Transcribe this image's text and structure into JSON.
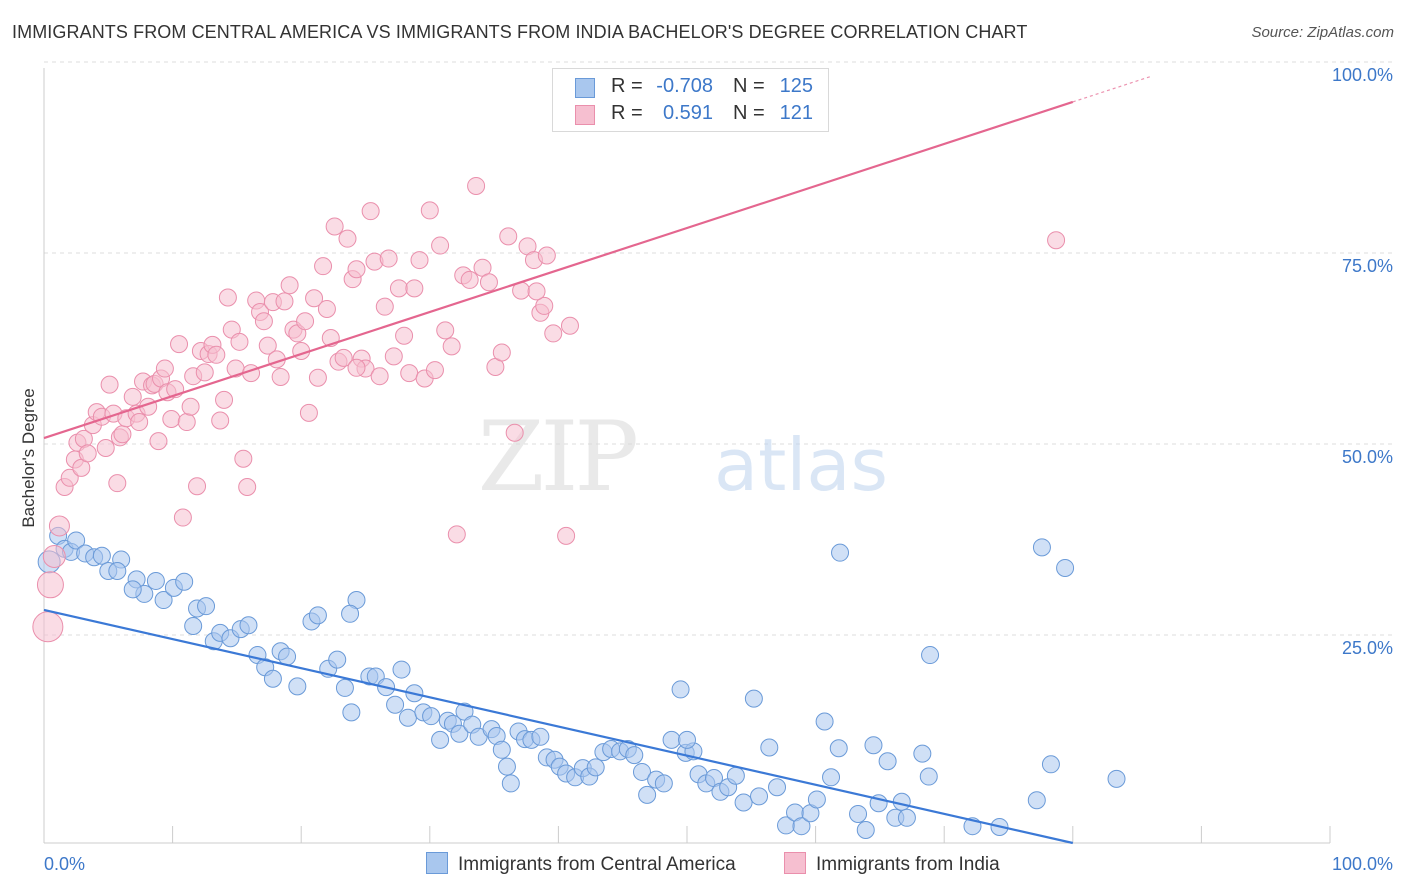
{
  "title": "IMMIGRANTS FROM CENTRAL AMERICA VS IMMIGRANTS FROM INDIA BACHELOR'S DEGREE CORRELATION CHART",
  "source": "Source: ZipAtlas.com",
  "watermark": {
    "zip": "ZIP",
    "atlas": "atlas"
  },
  "colors": {
    "blue_fill": "#a9c7ee",
    "blue_stroke": "#6a9ad8",
    "blue_line": "#3b79d6",
    "pink_fill": "#f6bfd0",
    "pink_stroke": "#ea8fac",
    "pink_line": "#e4668f",
    "axis_label": "#3d78c9",
    "grid": "#dddddd"
  },
  "legend_top": {
    "rows": [
      {
        "series": "Immigrants from Central America",
        "r_label": "R =",
        "r_value": "-0.708",
        "n_label": "N =",
        "n_value": "125"
      },
      {
        "series": "Immigrants from India",
        "r_label": "R =",
        "r_value": "0.591",
        "n_label": "N =",
        "n_value": "121"
      }
    ]
  },
  "legend_bottom": [
    "Immigrants from Central America",
    "Immigrants from India"
  ],
  "chart_data": {
    "type": "scatter",
    "title": "IMMIGRANTS FROM CENTRAL AMERICA VS IMMIGRANTS FROM INDIA BACHELOR'S DEGREE CORRELATION CHART",
    "xlabel": "",
    "ylabel": "Bachelor's Degree",
    "xlim": [
      0,
      100
    ],
    "ylim": [
      0,
      100
    ],
    "x_tick_labels": [
      {
        "value": 0,
        "label": "0.0%"
      },
      {
        "value": 100,
        "label": "100.0%"
      }
    ],
    "y_tick_labels": [
      {
        "value": 25,
        "label": "25.0%"
      },
      {
        "value": 50,
        "label": "50.0%"
      },
      {
        "value": 75,
        "label": "75.0%"
      },
      {
        "value": 100,
        "label": "100.0%"
      }
    ],
    "grid": true,
    "series": [
      {
        "name": "Immigrants from Central America",
        "color": "blue",
        "R": -0.708,
        "N": 125,
        "trend": {
          "x0": 0,
          "y0": 30.5,
          "x1": 80,
          "y1": 0,
          "dashed_to": 80
        },
        "points": [
          [
            0.4,
            36.8
          ],
          [
            1.1,
            40.2
          ],
          [
            1.6,
            38.5
          ],
          [
            2.1,
            38.1
          ],
          [
            2.5,
            39.6
          ],
          [
            3.2,
            37.9
          ],
          [
            3.9,
            37.4
          ],
          [
            4.5,
            37.6
          ],
          [
            5.0,
            35.6
          ],
          [
            6.0,
            37.1
          ],
          [
            5.7,
            35.6
          ],
          [
            7.2,
            34.5
          ],
          [
            7.8,
            32.6
          ],
          [
            6.9,
            33.2
          ],
          [
            8.7,
            34.3
          ],
          [
            9.3,
            31.8
          ],
          [
            10.1,
            33.4
          ],
          [
            10.9,
            34.2
          ],
          [
            11.6,
            28.4
          ],
          [
            11.9,
            30.7
          ],
          [
            12.6,
            31.0
          ],
          [
            13.2,
            26.4
          ],
          [
            13.7,
            27.5
          ],
          [
            14.5,
            26.8
          ],
          [
            15.3,
            28.0
          ],
          [
            15.9,
            28.5
          ],
          [
            16.6,
            24.6
          ],
          [
            17.2,
            23.0
          ],
          [
            17.8,
            21.5
          ],
          [
            18.4,
            25.1
          ],
          [
            18.9,
            24.4
          ],
          [
            19.7,
            20.5
          ],
          [
            20.8,
            29.0
          ],
          [
            21.3,
            29.8
          ],
          [
            22.1,
            22.8
          ],
          [
            22.8,
            24.0
          ],
          [
            23.4,
            20.3
          ],
          [
            23.9,
            17.1
          ],
          [
            24.3,
            31.8
          ],
          [
            25.3,
            21.8
          ],
          [
            25.8,
            21.8
          ],
          [
            26.6,
            20.4
          ],
          [
            27.3,
            18.1
          ],
          [
            27.8,
            22.7
          ],
          [
            28.3,
            16.4
          ],
          [
            28.8,
            19.6
          ],
          [
            29.5,
            17.1
          ],
          [
            30.1,
            16.6
          ],
          [
            30.8,
            13.5
          ],
          [
            31.4,
            16.0
          ],
          [
            31.8,
            15.6
          ],
          [
            32.3,
            14.3
          ],
          [
            32.7,
            17.2
          ],
          [
            33.3,
            15.5
          ],
          [
            33.8,
            13.9
          ],
          [
            34.8,
            14.9
          ],
          [
            35.2,
            14.0
          ],
          [
            35.6,
            12.2
          ],
          [
            36.0,
            10.0
          ],
          [
            36.3,
            7.8
          ],
          [
            36.9,
            14.6
          ],
          [
            37.4,
            13.6
          ],
          [
            37.9,
            13.5
          ],
          [
            38.6,
            13.9
          ],
          [
            39.1,
            11.2
          ],
          [
            39.7,
            10.9
          ],
          [
            40.1,
            10.0
          ],
          [
            40.6,
            9.1
          ],
          [
            41.3,
            8.6
          ],
          [
            41.9,
            9.8
          ],
          [
            42.4,
            8.7
          ],
          [
            42.9,
            9.9
          ],
          [
            43.5,
            11.9
          ],
          [
            44.1,
            12.3
          ],
          [
            44.8,
            12.0
          ],
          [
            45.4,
            12.3
          ],
          [
            45.9,
            11.5
          ],
          [
            46.5,
            9.3
          ],
          [
            46.9,
            6.3
          ],
          [
            47.6,
            8.3
          ],
          [
            48.2,
            7.8
          ],
          [
            48.8,
            13.5
          ],
          [
            49.5,
            20.1
          ],
          [
            49.9,
            11.8
          ],
          [
            50.5,
            12.0
          ],
          [
            50.9,
            9.0
          ],
          [
            51.5,
            7.8
          ],
          [
            52.1,
            8.5
          ],
          [
            52.6,
            6.7
          ],
          [
            53.2,
            7.3
          ],
          [
            53.8,
            8.8
          ],
          [
            54.4,
            5.3
          ],
          [
            55.2,
            18.9
          ],
          [
            55.6,
            6.1
          ],
          [
            56.4,
            12.5
          ],
          [
            57.0,
            7.3
          ],
          [
            57.7,
            2.3
          ],
          [
            58.4,
            4.0
          ],
          [
            58.9,
            2.2
          ],
          [
            59.6,
            3.9
          ],
          [
            60.1,
            5.7
          ],
          [
            60.7,
            15.9
          ],
          [
            61.2,
            8.6
          ],
          [
            61.8,
            12.4
          ],
          [
            63.3,
            3.8
          ],
          [
            63.9,
            1.7
          ],
          [
            64.5,
            12.8
          ],
          [
            64.9,
            5.2
          ],
          [
            65.6,
            10.7
          ],
          [
            66.2,
            3.3
          ],
          [
            66.7,
            5.4
          ],
          [
            67.1,
            3.3
          ],
          [
            68.3,
            11.7
          ],
          [
            68.8,
            8.7
          ],
          [
            68.9,
            24.6
          ],
          [
            72.2,
            2.2
          ],
          [
            74.3,
            2.1
          ],
          [
            77.6,
            38.7
          ],
          [
            79.4,
            36.0
          ],
          [
            77.2,
            5.6
          ],
          [
            78.3,
            10.3
          ],
          [
            83.4,
            8.4
          ],
          [
            61.9,
            38.0
          ],
          [
            50.0,
            13.5
          ],
          [
            23.8,
            30.0
          ]
        ]
      },
      {
        "name": "Immigrants from India",
        "color": "pink",
        "R": 0.591,
        "N": 121,
        "trend": {
          "x0": 0,
          "y0": 53.0,
          "x1": 80,
          "y1": 97.0,
          "dashed_to": 86
        },
        "points": [
          [
            0.3,
            28.3
          ],
          [
            0.5,
            33.8
          ],
          [
            0.8,
            37.5
          ],
          [
            1.2,
            41.5
          ],
          [
            1.6,
            46.6
          ],
          [
            2.0,
            47.8
          ],
          [
            2.4,
            50.2
          ],
          [
            2.6,
            52.4
          ],
          [
            2.9,
            49.1
          ],
          [
            3.1,
            52.9
          ],
          [
            3.4,
            51.0
          ],
          [
            3.8,
            54.7
          ],
          [
            4.1,
            56.4
          ],
          [
            4.5,
            55.8
          ],
          [
            4.8,
            51.7
          ],
          [
            5.1,
            60.0
          ],
          [
            5.4,
            56.2
          ],
          [
            5.7,
            47.1
          ],
          [
            5.9,
            53.1
          ],
          [
            6.1,
            53.5
          ],
          [
            6.4,
            55.6
          ],
          [
            6.9,
            58.4
          ],
          [
            7.2,
            56.2
          ],
          [
            7.4,
            55.1
          ],
          [
            7.7,
            60.4
          ],
          [
            8.1,
            57.1
          ],
          [
            8.4,
            59.9
          ],
          [
            8.6,
            60.1
          ],
          [
            8.9,
            52.6
          ],
          [
            9.1,
            60.8
          ],
          [
            9.4,
            62.1
          ],
          [
            9.6,
            59.0
          ],
          [
            9.9,
            55.5
          ],
          [
            10.2,
            59.4
          ],
          [
            10.5,
            65.3
          ],
          [
            10.8,
            42.6
          ],
          [
            11.1,
            55.1
          ],
          [
            11.4,
            57.1
          ],
          [
            11.6,
            61.1
          ],
          [
            11.9,
            46.7
          ],
          [
            12.2,
            64.4
          ],
          [
            12.5,
            61.6
          ],
          [
            12.8,
            64.0
          ],
          [
            13.1,
            65.2
          ],
          [
            13.4,
            63.9
          ],
          [
            13.7,
            55.3
          ],
          [
            14.0,
            58.0
          ],
          [
            14.3,
            71.4
          ],
          [
            14.6,
            67.2
          ],
          [
            14.9,
            62.1
          ],
          [
            15.2,
            65.6
          ],
          [
            15.5,
            50.3
          ],
          [
            15.8,
            46.6
          ],
          [
            16.1,
            61.5
          ],
          [
            16.5,
            71.0
          ],
          [
            16.8,
            69.5
          ],
          [
            17.1,
            68.3
          ],
          [
            17.4,
            65.1
          ],
          [
            17.8,
            70.8
          ],
          [
            18.1,
            63.3
          ],
          [
            18.4,
            61.0
          ],
          [
            18.7,
            70.9
          ],
          [
            19.1,
            73.0
          ],
          [
            19.4,
            67.2
          ],
          [
            19.7,
            66.7
          ],
          [
            20.0,
            64.4
          ],
          [
            20.3,
            68.3
          ],
          [
            20.6,
            56.3
          ],
          [
            21.0,
            71.3
          ],
          [
            21.3,
            60.9
          ],
          [
            21.7,
            75.5
          ],
          [
            22.0,
            69.9
          ],
          [
            22.3,
            66.1
          ],
          [
            22.6,
            80.7
          ],
          [
            22.9,
            63.0
          ],
          [
            23.3,
            63.5
          ],
          [
            23.6,
            79.1
          ],
          [
            24.0,
            73.8
          ],
          [
            24.3,
            75.1
          ],
          [
            24.7,
            63.4
          ],
          [
            25.0,
            62.1
          ],
          [
            25.4,
            82.7
          ],
          [
            25.7,
            76.1
          ],
          [
            26.1,
            61.1
          ],
          [
            26.5,
            70.2
          ],
          [
            26.8,
            76.5
          ],
          [
            27.2,
            63.7
          ],
          [
            27.6,
            72.6
          ],
          [
            28.0,
            66.4
          ],
          [
            28.4,
            61.5
          ],
          [
            28.8,
            72.6
          ],
          [
            29.2,
            76.3
          ],
          [
            29.6,
            60.8
          ],
          [
            30.0,
            82.8
          ],
          [
            30.4,
            61.9
          ],
          [
            30.8,
            78.2
          ],
          [
            31.2,
            67.1
          ],
          [
            31.7,
            65.0
          ],
          [
            32.1,
            40.4
          ],
          [
            32.6,
            74.3
          ],
          [
            33.1,
            73.7
          ],
          [
            33.6,
            86.0
          ],
          [
            34.1,
            75.3
          ],
          [
            34.6,
            73.4
          ],
          [
            35.1,
            62.3
          ],
          [
            35.6,
            64.2
          ],
          [
            36.1,
            79.4
          ],
          [
            36.6,
            53.7
          ],
          [
            37.1,
            72.3
          ],
          [
            37.6,
            78.1
          ],
          [
            38.1,
            76.3
          ],
          [
            38.6,
            69.4
          ],
          [
            39.1,
            76.9
          ],
          [
            39.6,
            66.7
          ],
          [
            40.6,
            40.2
          ],
          [
            40.9,
            67.7
          ],
          [
            38.9,
            70.3
          ],
          [
            38.3,
            72.2
          ],
          [
            78.7,
            78.9
          ],
          [
            24.3,
            62.2
          ]
        ]
      }
    ]
  }
}
